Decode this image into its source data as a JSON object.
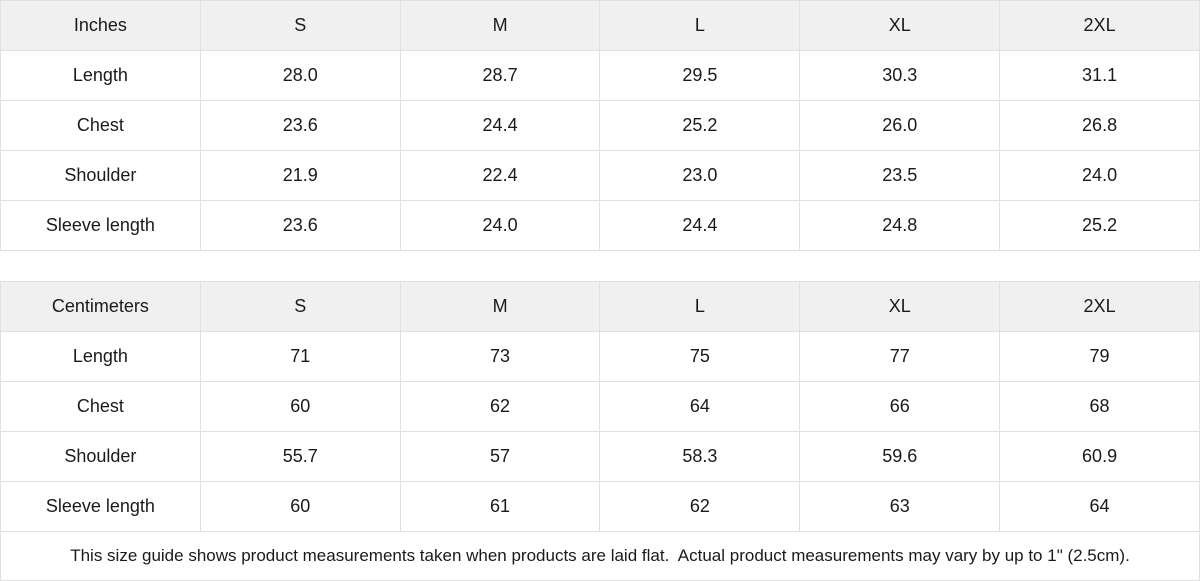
{
  "theme": {
    "header_bg": "#f0f0f1",
    "border_color": "#e0e0e0",
    "text_color": "#1a1a1a",
    "body_bg": "#ffffff"
  },
  "tables": [
    {
      "unit_label": "Inches",
      "sizes": [
        "S",
        "M",
        "L",
        "XL",
        "2XL"
      ],
      "rows": [
        {
          "label": "Length",
          "values": [
            "28.0",
            "28.7",
            "29.5",
            "30.3",
            "31.1"
          ]
        },
        {
          "label": "Chest",
          "values": [
            "23.6",
            "24.4",
            "25.2",
            "26.0",
            "26.8"
          ]
        },
        {
          "label": "Shoulder",
          "values": [
            "21.9",
            "22.4",
            "23.0",
            "23.5",
            "24.0"
          ]
        },
        {
          "label": "Sleeve length",
          "values": [
            "23.6",
            "24.0",
            "24.4",
            "24.8",
            "25.2"
          ]
        }
      ]
    },
    {
      "unit_label": "Centimeters",
      "sizes": [
        "S",
        "M",
        "L",
        "XL",
        "2XL"
      ],
      "rows": [
        {
          "label": "Length",
          "values": [
            "71",
            "73",
            "75",
            "77",
            "79"
          ]
        },
        {
          "label": "Chest",
          "values": [
            "60",
            "62",
            "64",
            "66",
            "68"
          ]
        },
        {
          "label": "Shoulder",
          "values": [
            "55.7",
            "57",
            "58.3",
            "59.6",
            "60.9"
          ]
        },
        {
          "label": "Sleeve length",
          "values": [
            "60",
            "61",
            "62",
            "63",
            "64"
          ]
        }
      ]
    }
  ],
  "footer": {
    "note": "This size guide shows product measurements taken when products are laid flat.  Actual product measurements may vary by up to 1\" (2.5cm)."
  },
  "chart_data": [
    {
      "type": "table",
      "title": "Inches",
      "columns": [
        "Inches",
        "S",
        "M",
        "L",
        "XL",
        "2XL"
      ],
      "rows": [
        [
          "Length",
          28.0,
          28.7,
          29.5,
          30.3,
          31.1
        ],
        [
          "Chest",
          23.6,
          24.4,
          25.2,
          26.0,
          26.8
        ],
        [
          "Shoulder",
          21.9,
          22.4,
          23.0,
          23.5,
          24.0
        ],
        [
          "Sleeve length",
          23.6,
          24.0,
          24.4,
          24.8,
          25.2
        ]
      ]
    },
    {
      "type": "table",
      "title": "Centimeters",
      "columns": [
        "Centimeters",
        "S",
        "M",
        "L",
        "XL",
        "2XL"
      ],
      "rows": [
        [
          "Length",
          71,
          73,
          75,
          77,
          79
        ],
        [
          "Chest",
          60,
          62,
          64,
          66,
          68
        ],
        [
          "Shoulder",
          55.7,
          57,
          58.3,
          59.6,
          60.9
        ],
        [
          "Sleeve length",
          60,
          61,
          62,
          63,
          64
        ]
      ]
    }
  ]
}
